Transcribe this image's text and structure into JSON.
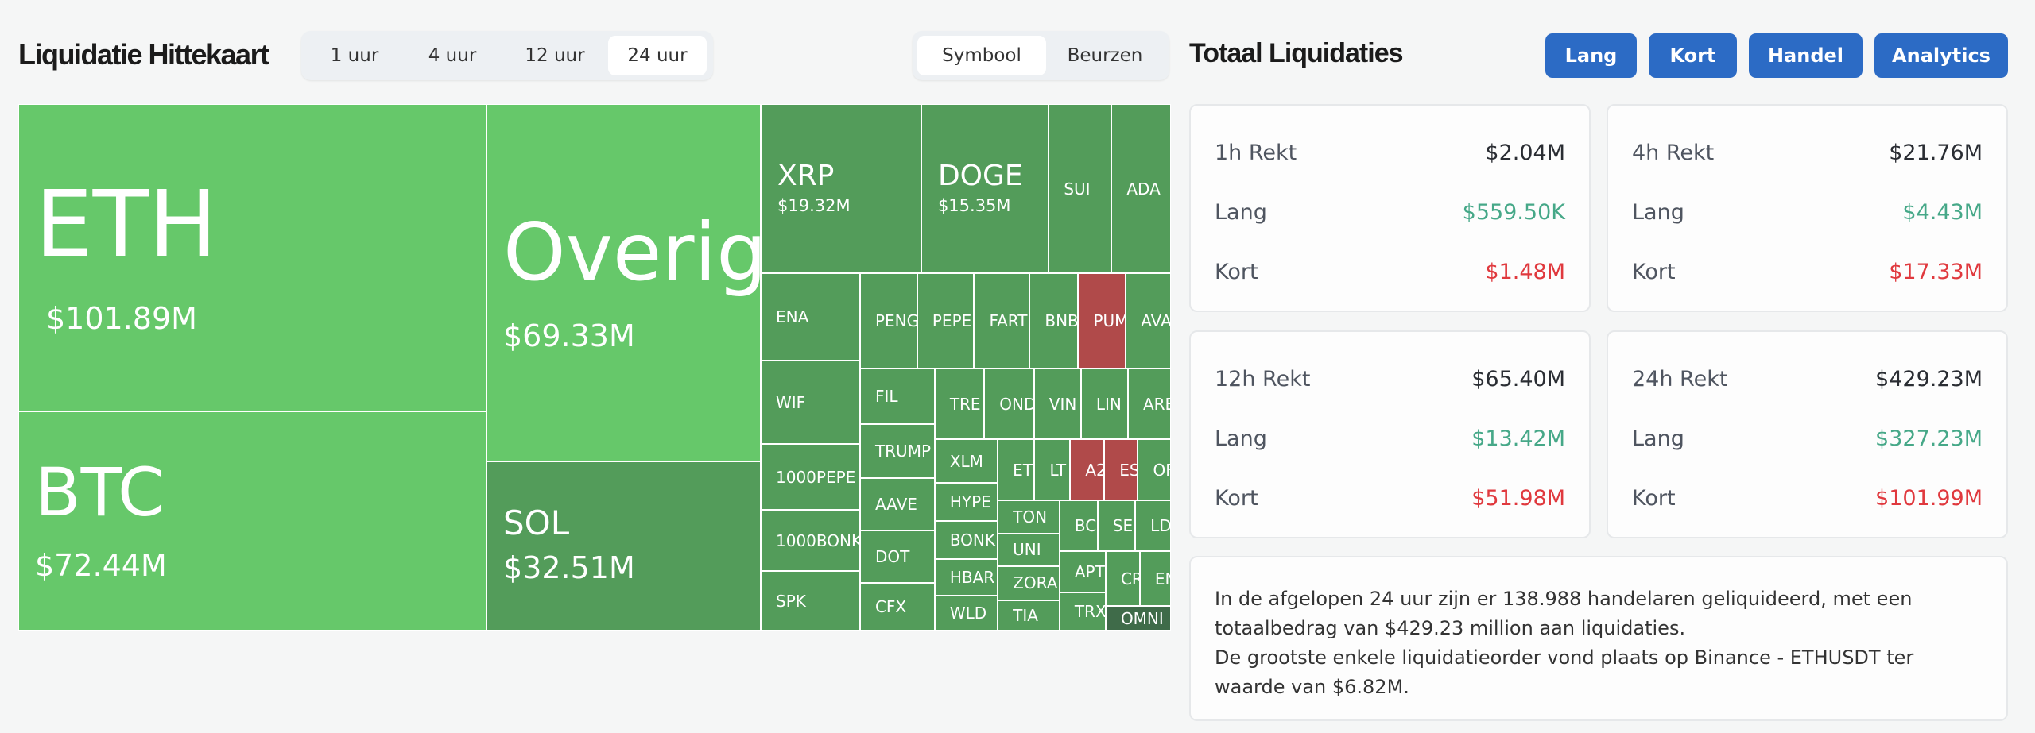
{
  "header": {
    "title": "Liquidatie Hittekaart",
    "time_tabs": [
      {
        "label": "1 uur"
      },
      {
        "label": "4 uur"
      },
      {
        "label": "12 uur"
      },
      {
        "label": "24 uur",
        "active": true
      }
    ],
    "view_tabs": [
      {
        "label": "Symbool",
        "active": true
      },
      {
        "label": "Beurzen"
      }
    ]
  },
  "colors": {
    "long_major": "#66c86a",
    "long": "#539c5a",
    "short": "#b04a4a",
    "dark": "#3f6b49",
    "accent": "#2c6bc5",
    "long_text": "#46a888",
    "short_text": "#e0393e"
  },
  "treemap": {
    "tiles": [
      {
        "symbol": "ETH",
        "value": "$101.89M",
        "color": "long_major"
      },
      {
        "symbol": "BTC",
        "value": "$72.44M",
        "color": "long_major"
      },
      {
        "symbol": "Overige",
        "value": "$69.33M",
        "color": "long_major"
      },
      {
        "symbol": "SOL",
        "value": "$32.51M",
        "color": "long"
      },
      {
        "symbol": "XRP",
        "value": "$19.32M",
        "color": "long"
      },
      {
        "symbol": "DOGE",
        "value": "$15.35M",
        "color": "long"
      },
      {
        "symbol": "SUI",
        "color": "long"
      },
      {
        "symbol": "ADA",
        "color": "long"
      },
      {
        "symbol": "ENA",
        "color": "long"
      },
      {
        "symbol": "WIF",
        "color": "long"
      },
      {
        "symbol": "1000PEPE",
        "color": "long"
      },
      {
        "symbol": "1000BONK",
        "color": "long"
      },
      {
        "symbol": "SPK",
        "color": "long"
      },
      {
        "symbol": "PENG",
        "color": "long"
      },
      {
        "symbol": "PEPE",
        "color": "long"
      },
      {
        "symbol": "FART",
        "color": "long"
      },
      {
        "symbol": "BNB",
        "color": "long"
      },
      {
        "symbol": "PUM",
        "color": "short"
      },
      {
        "symbol": "AVA",
        "color": "long"
      },
      {
        "symbol": "FIL",
        "color": "long"
      },
      {
        "symbol": "TRUMP",
        "color": "long"
      },
      {
        "symbol": "AAVE",
        "color": "long"
      },
      {
        "symbol": "DOT",
        "color": "long"
      },
      {
        "symbol": "CFX",
        "color": "long"
      },
      {
        "symbol": "TRE",
        "color": "long"
      },
      {
        "symbol": "OND",
        "color": "long"
      },
      {
        "symbol": "VIN",
        "color": "long"
      },
      {
        "symbol": "LIN",
        "color": "long"
      },
      {
        "symbol": "ARE",
        "color": "long"
      },
      {
        "symbol": "XLM",
        "color": "long"
      },
      {
        "symbol": "HYPE",
        "color": "long"
      },
      {
        "symbol": "BONK",
        "color": "long"
      },
      {
        "symbol": "HBAR",
        "color": "long"
      },
      {
        "symbol": "WLD",
        "color": "long"
      },
      {
        "symbol": "ET",
        "color": "long"
      },
      {
        "symbol": "LT",
        "color": "long"
      },
      {
        "symbol": "A2",
        "color": "short"
      },
      {
        "symbol": "ES",
        "color": "short"
      },
      {
        "symbol": "OF",
        "color": "long"
      },
      {
        "symbol": "TON",
        "color": "long"
      },
      {
        "symbol": "UNI",
        "color": "long"
      },
      {
        "symbol": "ZORA",
        "color": "long"
      },
      {
        "symbol": "TIA",
        "color": "long"
      },
      {
        "symbol": "BC",
        "color": "long"
      },
      {
        "symbol": "SE",
        "color": "long"
      },
      {
        "symbol": "LD",
        "color": "long"
      },
      {
        "symbol": "APT",
        "color": "long"
      },
      {
        "symbol": "TRX",
        "color": "long"
      },
      {
        "symbol": "CR",
        "color": "long"
      },
      {
        "symbol": "EN",
        "color": "long"
      },
      {
        "symbol": "OMNI",
        "color": "dark"
      }
    ]
  },
  "panel": {
    "title": "Totaal Liquidaties",
    "buttons": [
      {
        "label": "Lang"
      },
      {
        "label": "Kort"
      },
      {
        "label": "Handel"
      },
      {
        "label": "Analytics"
      }
    ],
    "cards": [
      {
        "label": "1h Rekt",
        "total": "$2.04M",
        "long_label": "Lang",
        "long": "$559.50K",
        "short_label": "Kort",
        "short": "$1.48M"
      },
      {
        "label": "4h Rekt",
        "total": "$21.76M",
        "long_label": "Lang",
        "long": "$4.43M",
        "short_label": "Kort",
        "short": "$17.33M"
      },
      {
        "label": "12h Rekt",
        "total": "$65.40M",
        "long_label": "Lang",
        "long": "$13.42M",
        "short_label": "Kort",
        "short": "$51.98M"
      },
      {
        "label": "24h Rekt",
        "total": "$429.23M",
        "long_label": "Lang",
        "long": "$327.23M",
        "short_label": "Kort",
        "short": "$101.99M"
      }
    ],
    "summary": [
      "In de afgelopen 24 uur zijn er 138.988 handelaren geliquideerd, met een totaalbedrag van $429.23 million aan liquidaties.",
      "De grootste enkele liquidatieorder vond plaats op Binance - ETHUSDT ter waarde van $6.82M."
    ]
  }
}
